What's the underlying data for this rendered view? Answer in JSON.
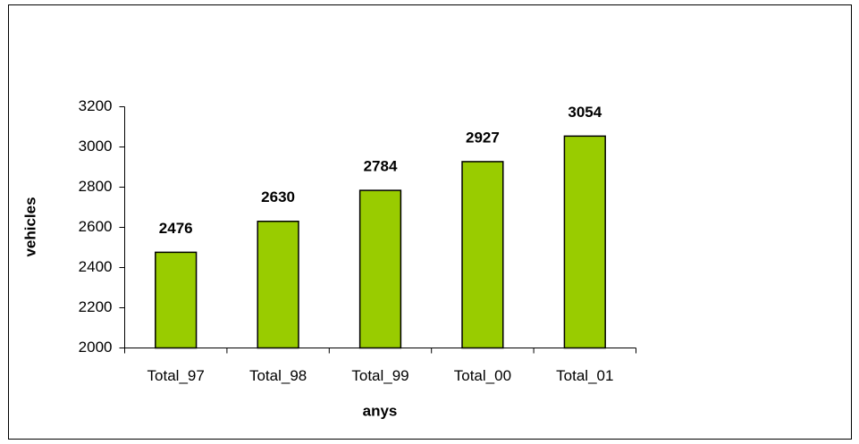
{
  "chart_data": {
    "type": "bar",
    "categories": [
      "Total_97",
      "Total_98",
      "Total_99",
      "Total_00",
      "Total_01"
    ],
    "values": [
      2476,
      2630,
      2784,
      2927,
      3054
    ],
    "color": "#99cc00",
    "x_label": "anys",
    "y_label": "vehicles",
    "ylim": [
      2000,
      3200
    ],
    "yticks": [
      2000,
      2200,
      2400,
      2600,
      2800,
      3000,
      3200
    ],
    "grid": false
  }
}
